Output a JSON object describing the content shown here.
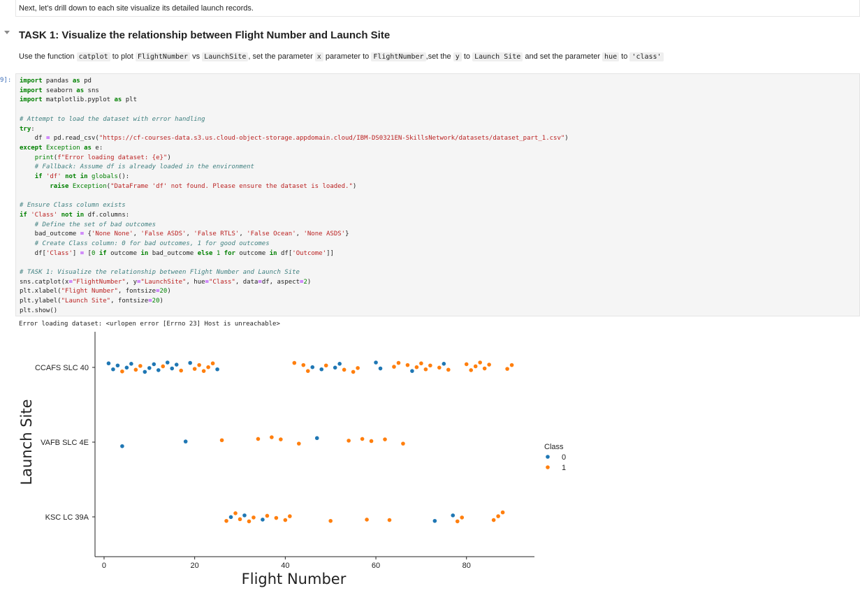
{
  "previous_markdown": "Next, let's drill down to each site visualize its detailed launch records.",
  "task": {
    "heading": "TASK 1: Visualize the relationship between Flight Number and Launch Site",
    "desc": {
      "t1": "Use the function",
      "c1": "catplot",
      "t2": "to plot",
      "c2": "FlightNumber",
      "t3": "vs",
      "c3": "LaunchSite",
      "t4": ", set the parameter",
      "c4": "x",
      "t5": "parameter to",
      "c5": "FlightNumber",
      "t6": ",set the",
      "c6": "y",
      "t7": "to",
      "c7": "Launch Site",
      "t8": "and set the parameter",
      "c8": "hue",
      "t9": "to",
      "c9": "'class'"
    }
  },
  "cell": {
    "execution_count": "9]:",
    "code_lines": [
      "import pandas as pd",
      "import seaborn as sns",
      "import matplotlib.pyplot as plt",
      "",
      "# Attempt to load the dataset with error handling",
      "try:",
      "    df = pd.read_csv(\"https://cf-courses-data.s3.us.cloud-object-storage.appdomain.cloud/IBM-DS0321EN-SkillsNetwork/datasets/dataset_part_1.csv\")",
      "except Exception as e:",
      "    print(f\"Error loading dataset: {e}\")",
      "    # Fallback: Assume df is already loaded in the environment",
      "    if 'df' not in globals():",
      "        raise Exception(\"DataFrame 'df' not found. Please ensure the dataset is loaded.\")",
      "",
      "# Ensure Class column exists",
      "if 'Class' not in df.columns:",
      "    # Define the set of bad outcomes",
      "    bad_outcome = {'None None', 'False ASDS', 'False RTLS', 'False Ocean', 'None ASDS'}",
      "    # Create Class column: 0 for bad outcomes, 1 for good outcomes",
      "    df['Class'] = [0 if outcome in bad_outcome else 1 for outcome in df['Outcome']]",
      "",
      "# TASK 1: Visualize the relationship between Flight Number and Launch Site",
      "sns.catplot(x=\"FlightNumber\", y=\"LaunchSite\", hue=\"Class\", data=df, aspect=2)",
      "plt.xlabel(\"Flight Number\", fontsize=20)",
      "plt.ylabel(\"Launch Site\", fontsize=20)",
      "plt.show()"
    ],
    "stderr": "Error loading dataset: <urlopen error [Errno 23] Host is unreachable>"
  },
  "colors": {
    "class0": "#1f77b4",
    "class1": "#ff7f0e",
    "keyword": "#008000",
    "string": "#ba2121",
    "comment": "#408080"
  },
  "chart_data": {
    "type": "scatter",
    "title": "",
    "xlabel": "Flight Number",
    "ylabel": "Launch Site",
    "categories": [
      "CCAFS SLC 40",
      "VAFB SLC 4E",
      "KSC LC 39A"
    ],
    "xlim": [
      -2,
      95
    ],
    "xticks": [
      0,
      20,
      40,
      60,
      80
    ],
    "legend": {
      "title": "Class",
      "entries": [
        "0",
        "1"
      ],
      "placement": "right"
    },
    "grid": false,
    "series": [
      {
        "name": "0",
        "points": [
          [
            "CCAFS SLC 40",
            1
          ],
          [
            "CCAFS SLC 40",
            2
          ],
          [
            "CCAFS SLC 40",
            3
          ],
          [
            "CCAFS SLC 40",
            5
          ],
          [
            "CCAFS SLC 40",
            6
          ],
          [
            "CCAFS SLC 40",
            9
          ],
          [
            "CCAFS SLC 40",
            10
          ],
          [
            "CCAFS SLC 40",
            11
          ],
          [
            "CCAFS SLC 40",
            12
          ],
          [
            "CCAFS SLC 40",
            14
          ],
          [
            "CCAFS SLC 40",
            15
          ],
          [
            "CCAFS SLC 40",
            16
          ],
          [
            "CCAFS SLC 40",
            19
          ],
          [
            "CCAFS SLC 40",
            25
          ],
          [
            "CCAFS SLC 40",
            46
          ],
          [
            "CCAFS SLC 40",
            48
          ],
          [
            "CCAFS SLC 40",
            51
          ],
          [
            "CCAFS SLC 40",
            52
          ],
          [
            "CCAFS SLC 40",
            60
          ],
          [
            "CCAFS SLC 40",
            61
          ],
          [
            "CCAFS SLC 40",
            68
          ],
          [
            "CCAFS SLC 40",
            75
          ],
          [
            "VAFB SLC 4E",
            4
          ],
          [
            "VAFB SLC 4E",
            18
          ],
          [
            "VAFB SLC 4E",
            47
          ],
          [
            "KSC LC 39A",
            28
          ],
          [
            "KSC LC 39A",
            31
          ],
          [
            "KSC LC 39A",
            35
          ],
          [
            "KSC LC 39A",
            73
          ],
          [
            "KSC LC 39A",
            77
          ]
        ]
      },
      {
        "name": "1",
        "points": [
          [
            "CCAFS SLC 40",
            4
          ],
          [
            "CCAFS SLC 40",
            7
          ],
          [
            "CCAFS SLC 40",
            8
          ],
          [
            "CCAFS SLC 40",
            13
          ],
          [
            "CCAFS SLC 40",
            17
          ],
          [
            "CCAFS SLC 40",
            20
          ],
          [
            "CCAFS SLC 40",
            21
          ],
          [
            "CCAFS SLC 40",
            22
          ],
          [
            "CCAFS SLC 40",
            23
          ],
          [
            "CCAFS SLC 40",
            24
          ],
          [
            "CCAFS SLC 40",
            42
          ],
          [
            "CCAFS SLC 40",
            44
          ],
          [
            "CCAFS SLC 40",
            45
          ],
          [
            "CCAFS SLC 40",
            49
          ],
          [
            "CCAFS SLC 40",
            53
          ],
          [
            "CCAFS SLC 40",
            55
          ],
          [
            "CCAFS SLC 40",
            56
          ],
          [
            "CCAFS SLC 40",
            64
          ],
          [
            "CCAFS SLC 40",
            65
          ],
          [
            "CCAFS SLC 40",
            67
          ],
          [
            "CCAFS SLC 40",
            69
          ],
          [
            "CCAFS SLC 40",
            70
          ],
          [
            "CCAFS SLC 40",
            71
          ],
          [
            "CCAFS SLC 40",
            72
          ],
          [
            "CCAFS SLC 40",
            74
          ],
          [
            "CCAFS SLC 40",
            76
          ],
          [
            "CCAFS SLC 40",
            80
          ],
          [
            "CCAFS SLC 40",
            81
          ],
          [
            "CCAFS SLC 40",
            82
          ],
          [
            "CCAFS SLC 40",
            83
          ],
          [
            "CCAFS SLC 40",
            84
          ],
          [
            "CCAFS SLC 40",
            85
          ],
          [
            "CCAFS SLC 40",
            89
          ],
          [
            "CCAFS SLC 40",
            90
          ],
          [
            "VAFB SLC 4E",
            26
          ],
          [
            "VAFB SLC 4E",
            34
          ],
          [
            "VAFB SLC 4E",
            37
          ],
          [
            "VAFB SLC 4E",
            39
          ],
          [
            "VAFB SLC 4E",
            43
          ],
          [
            "VAFB SLC 4E",
            54
          ],
          [
            "VAFB SLC 4E",
            57
          ],
          [
            "VAFB SLC 4E",
            59
          ],
          [
            "VAFB SLC 4E",
            62
          ],
          [
            "VAFB SLC 4E",
            66
          ],
          [
            "KSC LC 39A",
            27
          ],
          [
            "KSC LC 39A",
            29
          ],
          [
            "KSC LC 39A",
            30
          ],
          [
            "KSC LC 39A",
            32
          ],
          [
            "KSC LC 39A",
            33
          ],
          [
            "KSC LC 39A",
            36
          ],
          [
            "KSC LC 39A",
            38
          ],
          [
            "KSC LC 39A",
            40
          ],
          [
            "KSC LC 39A",
            41
          ],
          [
            "KSC LC 39A",
            50
          ],
          [
            "KSC LC 39A",
            58
          ],
          [
            "KSC LC 39A",
            63
          ],
          [
            "KSC LC 39A",
            78
          ],
          [
            "KSC LC 39A",
            79
          ],
          [
            "KSC LC 39A",
            86
          ],
          [
            "KSC LC 39A",
            87
          ],
          [
            "KSC LC 39A",
            88
          ]
        ]
      }
    ]
  }
}
